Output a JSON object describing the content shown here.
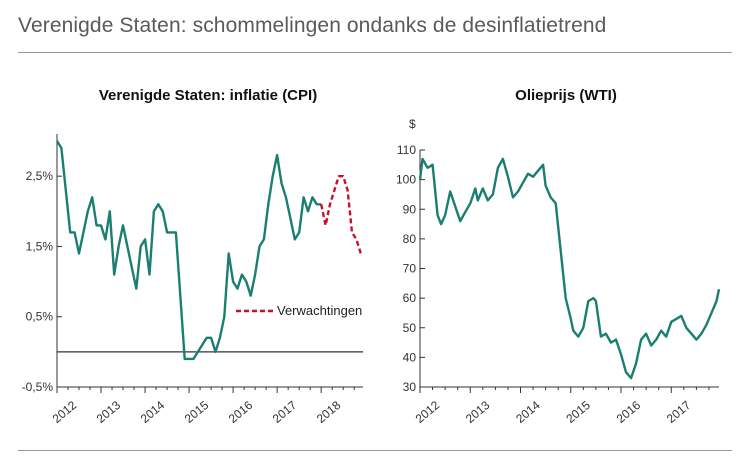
{
  "page": {
    "title": "Verenigde Staten: schommelingen ondanks de desinflatietrend"
  },
  "colors": {
    "series": "#1a7f70",
    "forecast": "#c8102e",
    "axis": "#333333",
    "rule": "#9a9a9a"
  },
  "chart_data": [
    {
      "type": "line",
      "title": "Verenigde Staten: inflatie (CPI)",
      "xlabel": "",
      "ylabel": "",
      "xlim": [
        2012.0,
        2018.95
      ],
      "ylim": [
        -0.5,
        3.1
      ],
      "baseline": 0,
      "y_ticks": [
        -0.5,
        0.5,
        1.5,
        2.5
      ],
      "y_tick_labels": [
        "-0,5%",
        "0,5%",
        "1,5%",
        "2,5%"
      ],
      "x_ticks": [
        2012,
        2013,
        2014,
        2015,
        2016,
        2017,
        2018
      ],
      "x_tick_labels": [
        "2012",
        "2013",
        "2014",
        "2015",
        "2016",
        "2017",
        "2018"
      ],
      "legend": {
        "label": "Verwachtingen",
        "position": "right-middle"
      },
      "series": [
        {
          "name": "CPI",
          "style": "solid",
          "x": [
            2012.0,
            2012.1,
            2012.2,
            2012.3,
            2012.4,
            2012.5,
            2012.6,
            2012.7,
            2012.8,
            2012.9,
            2013.0,
            2013.1,
            2013.2,
            2013.3,
            2013.4,
            2013.5,
            2013.6,
            2013.7,
            2013.8,
            2013.9,
            2014.0,
            2014.1,
            2014.2,
            2014.3,
            2014.4,
            2014.5,
            2014.6,
            2014.7,
            2014.8,
            2014.9,
            2015.0,
            2015.1,
            2015.2,
            2015.3,
            2015.4,
            2015.5,
            2015.6,
            2015.7,
            2015.8,
            2015.9,
            2016.0,
            2016.1,
            2016.2,
            2016.3,
            2016.4,
            2016.5,
            2016.6,
            2016.7,
            2016.8,
            2016.9,
            2017.0,
            2017.1,
            2017.2,
            2017.3,
            2017.4,
            2017.5,
            2017.6,
            2017.7,
            2017.8,
            2017.9,
            2018.0
          ],
          "values": [
            3.0,
            2.9,
            2.3,
            1.7,
            1.7,
            1.4,
            1.7,
            2.0,
            2.2,
            1.8,
            1.8,
            1.6,
            2.0,
            1.1,
            1.5,
            1.8,
            1.5,
            1.2,
            0.9,
            1.5,
            1.6,
            1.1,
            2.0,
            2.1,
            2.0,
            1.7,
            1.7,
            1.7,
            0.8,
            -0.1,
            -0.1,
            -0.1,
            0.0,
            0.1,
            0.2,
            0.2,
            0.0,
            0.2,
            0.5,
            1.4,
            1.0,
            0.9,
            1.1,
            1.0,
            0.8,
            1.1,
            1.5,
            1.6,
            2.1,
            2.5,
            2.8,
            2.4,
            2.2,
            1.9,
            1.6,
            1.7,
            2.2,
            2.0,
            2.2,
            2.1,
            2.1
          ]
        },
        {
          "name": "Verwachtingen",
          "style": "dashed",
          "x": [
            2018.0,
            2018.1,
            2018.2,
            2018.3,
            2018.4,
            2018.5,
            2018.6,
            2018.7,
            2018.8,
            2018.9
          ],
          "values": [
            2.1,
            1.8,
            2.1,
            2.3,
            2.5,
            2.5,
            2.3,
            1.7,
            1.6,
            1.4
          ]
        }
      ]
    },
    {
      "type": "line",
      "title": "Olieprijs (WTI)",
      "unit_label": "$",
      "xlabel": "",
      "ylabel": "$",
      "xlim": [
        2012.0,
        2017.95
      ],
      "ylim": [
        30,
        110
      ],
      "y_ticks": [
        30,
        40,
        50,
        60,
        70,
        80,
        90,
        100,
        110
      ],
      "y_tick_labels": [
        "30",
        "40",
        "50",
        "60",
        "70",
        "80",
        "90",
        "100",
        "110"
      ],
      "x_ticks": [
        2012,
        2013,
        2014,
        2015,
        2016,
        2017
      ],
      "x_tick_labels": [
        "2012",
        "2013",
        "2014",
        "2015",
        "2016",
        "2017"
      ],
      "series": [
        {
          "name": "WTI",
          "style": "solid",
          "x": [
            2012.0,
            2012.05,
            2012.15,
            2012.25,
            2012.35,
            2012.42,
            2012.5,
            2012.6,
            2012.7,
            2012.8,
            2012.9,
            2013.0,
            2013.1,
            2013.15,
            2013.25,
            2013.35,
            2013.45,
            2013.55,
            2013.65,
            2013.75,
            2013.85,
            2013.95,
            2014.05,
            2014.15,
            2014.25,
            2014.35,
            2014.45,
            2014.5,
            2014.6,
            2014.7,
            2014.8,
            2014.9,
            2015.0,
            2015.05,
            2015.15,
            2015.25,
            2015.35,
            2015.45,
            2015.5,
            2015.6,
            2015.7,
            2015.8,
            2015.9,
            2016.0,
            2016.1,
            2016.2,
            2016.3,
            2016.4,
            2016.5,
            2016.6,
            2016.7,
            2016.8,
            2016.9,
            2017.0,
            2017.1,
            2017.2,
            2017.3,
            2017.4,
            2017.5,
            2017.6,
            2017.7,
            2017.8,
            2017.9,
            2017.95
          ],
          "values": [
            100,
            107,
            104,
            105,
            88,
            85,
            88,
            96,
            91,
            86,
            89,
            92,
            97,
            93,
            97,
            93,
            95,
            104,
            107,
            101,
            94,
            96,
            99,
            102,
            101,
            103,
            105,
            98,
            94,
            92,
            76,
            60,
            53,
            49,
            47,
            50,
            59,
            60,
            59,
            47,
            48,
            45,
            46,
            41,
            35,
            33,
            38,
            46,
            48,
            44,
            46,
            49,
            47,
            52,
            53,
            54,
            50,
            48,
            46,
            48,
            51,
            55,
            59,
            63
          ]
        }
      ]
    }
  ]
}
